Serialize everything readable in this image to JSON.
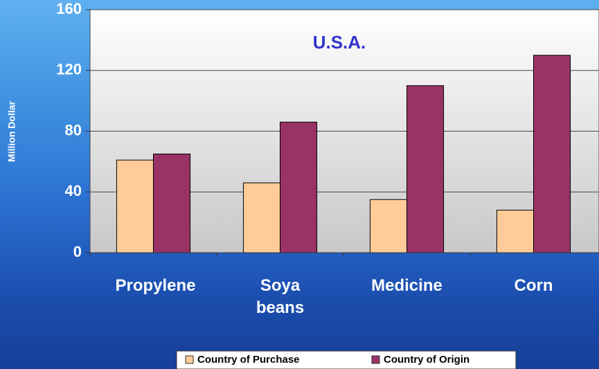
{
  "chart_data": {
    "type": "bar",
    "subtitle": "U.S.A.",
    "y_label": "Million Dollar",
    "categories": [
      "Propylene",
      "Soya beans",
      "Medicine",
      "Corn"
    ],
    "series": [
      {
        "name": "Country of Purchase",
        "color": "#ffcc99",
        "values": [
          61,
          46,
          35,
          28
        ]
      },
      {
        "name": "Country of Origin",
        "color": "#993366",
        "values": [
          65,
          86,
          110,
          130
        ]
      }
    ],
    "ylim": [
      0,
      160
    ],
    "yticks": [
      0,
      40,
      80,
      120,
      160
    ],
    "grid": true,
    "legend": "bottom"
  }
}
